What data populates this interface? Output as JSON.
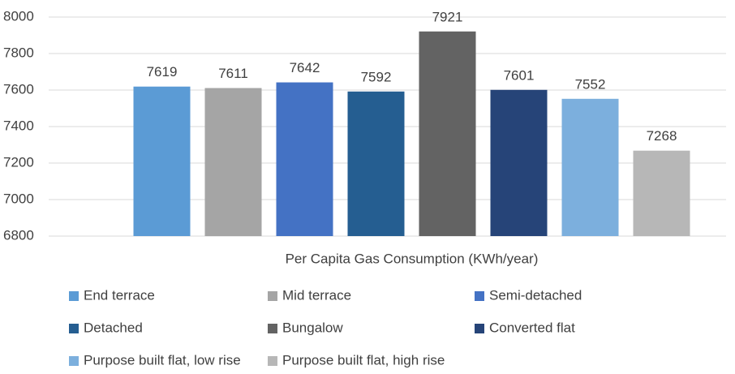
{
  "chart_data": {
    "type": "bar",
    "categories": [
      "Per Capita Gas Consumption (KWh/year)"
    ],
    "series": [
      {
        "name": "End terrace",
        "color": "#5b9bd5",
        "values": [
          7619
        ]
      },
      {
        "name": "Mid terrace",
        "color": "#a5a5a5",
        "values": [
          7611
        ]
      },
      {
        "name": "Semi-detached",
        "color": "#4472c4",
        "values": [
          7642
        ]
      },
      {
        "name": "Detached",
        "color": "#255e91",
        "values": [
          7592
        ]
      },
      {
        "name": "Bungalow",
        "color": "#636363",
        "values": [
          7921
        ]
      },
      {
        "name": "Converted flat",
        "color": "#264478",
        "values": [
          7601
        ]
      },
      {
        "name": "Purpose built flat, low rise",
        "color": "#7cafdd",
        "values": [
          7552
        ]
      },
      {
        "name": "Purpose built flat, high rise",
        "color": "#b7b7b7",
        "values": [
          7268
        ]
      }
    ],
    "ylim": [
      6800,
      8000
    ],
    "yticks": [
      6800,
      7000,
      7200,
      7400,
      7600,
      7800,
      8000
    ],
    "grid": true,
    "legend": "bottom"
  }
}
